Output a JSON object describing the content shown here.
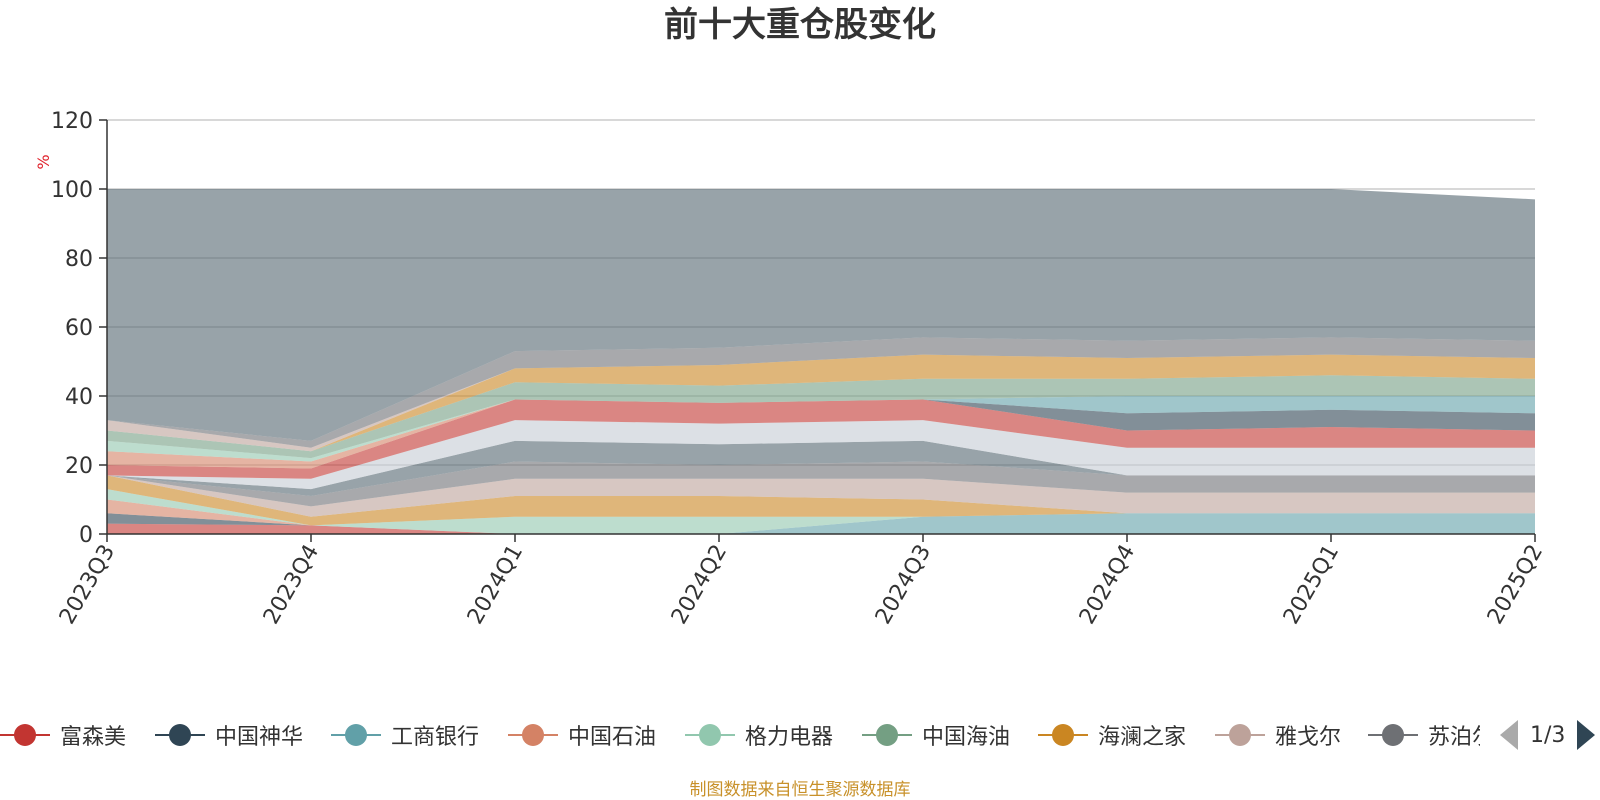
{
  "chart_data": {
    "type": "area",
    "title": "前十大重仓股变化",
    "ylabel": "%",
    "ylim": [
      0,
      120
    ],
    "yticks": [
      0,
      20,
      40,
      60,
      80,
      100,
      120
    ],
    "categories": [
      "2023Q3",
      "2023Q4",
      "2024Q1",
      "2024Q2",
      "2024Q3",
      "2024Q4",
      "2025Q1",
      "2025Q2"
    ],
    "layers": [
      {
        "color": "#c23531",
        "lower": [
          0,
          0,
          0,
          0,
          0,
          0,
          0,
          0
        ],
        "upper": [
          3,
          2.5,
          0,
          0,
          0,
          0,
          0,
          0
        ]
      },
      {
        "color": "#2f4554",
        "lower": [
          3,
          2.5,
          0,
          0,
          0,
          0,
          0,
          0
        ],
        "upper": [
          6,
          2.5,
          0,
          0,
          0,
          0,
          0,
          0
        ]
      },
      {
        "color": "#61a0a8",
        "lower": [
          6,
          2.5,
          0,
          0,
          0,
          0,
          0,
          0
        ],
        "upper": [
          6,
          2.5,
          0,
          0,
          5,
          6,
          6,
          6
        ]
      },
      {
        "color": "#d48265",
        "lower": [
          6,
          2.5,
          0,
          0,
          5,
          6,
          6,
          6
        ],
        "upper": [
          10,
          2.5,
          0,
          0,
          5,
          6,
          6,
          6
        ]
      },
      {
        "color": "#91c7ae",
        "lower": [
          10,
          2.5,
          0,
          0,
          5,
          6,
          6,
          6
        ],
        "upper": [
          13,
          2.5,
          5,
          5,
          5,
          6,
          6,
          6
        ]
      },
      {
        "color": "#749f83",
        "lower": [
          13,
          2.5,
          5,
          5,
          5,
          6,
          6,
          6
        ],
        "upper": [
          13,
          2.5,
          5,
          5,
          5,
          6,
          6,
          6
        ]
      },
      {
        "color": "#ca8622",
        "lower": [
          13,
          2.5,
          5,
          5,
          5,
          6,
          6,
          6
        ],
        "upper": [
          17,
          5,
          11,
          11,
          10,
          6,
          6,
          6
        ]
      },
      {
        "color": "#bda29a",
        "lower": [
          17,
          5,
          11,
          11,
          10,
          6,
          6,
          6
        ],
        "upper": [
          17,
          8,
          16,
          16,
          16,
          12,
          12,
          12
        ]
      },
      {
        "color": "#6e7074",
        "lower": [
          17,
          8,
          16,
          16,
          16,
          12,
          12,
          12
        ],
        "upper": [
          17,
          11,
          21,
          20,
          21,
          17,
          17,
          17
        ]
      },
      {
        "color": "#546570",
        "lower": [
          17,
          11,
          21,
          20,
          21,
          17,
          17,
          17
        ],
        "upper": [
          17,
          13,
          27,
          26,
          27,
          17,
          17,
          17
        ]
      },
      {
        "color": "#c4ccd3",
        "lower": [
          17,
          13,
          27,
          26,
          27,
          17,
          17,
          17
        ],
        "upper": [
          17,
          16,
          33,
          32,
          33,
          25,
          25,
          25
        ]
      },
      {
        "color": "#c23531",
        "lower": [
          17,
          16,
          33,
          32,
          33,
          25,
          25,
          25
        ],
        "upper": [
          20,
          19,
          39,
          38,
          39,
          30,
          31,
          30
        ]
      },
      {
        "color": "#2f4554",
        "lower": [
          20,
          19,
          39,
          38,
          39,
          30,
          31,
          30
        ],
        "upper": [
          20,
          19,
          39,
          38,
          39,
          35,
          36,
          35
        ]
      },
      {
        "color": "#61a0a8",
        "lower": [
          20,
          19,
          39,
          38,
          39,
          35,
          36,
          35
        ],
        "upper": [
          20,
          19,
          39,
          38,
          39,
          40,
          40,
          40
        ]
      },
      {
        "color": "#d48265",
        "lower": [
          20,
          19,
          39,
          38,
          39,
          40,
          40,
          40
        ],
        "upper": [
          24,
          21,
          39,
          38,
          39,
          40,
          40,
          40
        ]
      },
      {
        "color": "#91c7ae",
        "lower": [
          24,
          21,
          39,
          38,
          39,
          40,
          40,
          40
        ],
        "upper": [
          27,
          22,
          39,
          38,
          39,
          40,
          40,
          40
        ]
      },
      {
        "color": "#749f83",
        "lower": [
          27,
          22,
          39,
          38,
          39,
          40,
          40,
          40
        ],
        "upper": [
          30,
          24,
          44,
          43,
          45,
          45,
          46,
          45
        ]
      },
      {
        "color": "#ca8622",
        "lower": [
          30,
          24,
          44,
          43,
          45,
          45,
          46,
          45
        ],
        "upper": [
          30,
          24,
          48,
          49,
          52,
          51,
          52,
          51
        ]
      },
      {
        "color": "#bda29a",
        "lower": [
          30,
          24,
          48,
          49,
          52,
          51,
          52,
          51
        ],
        "upper": [
          33,
          25,
          48,
          49,
          52,
          51,
          52,
          51
        ]
      },
      {
        "color": "#6e7074",
        "lower": [
          33,
          25,
          48,
          49,
          52,
          51,
          52,
          51
        ],
        "upper": [
          33,
          27,
          53,
          54,
          57,
          56,
          57,
          56
        ]
      },
      {
        "color": "#546570",
        "lower": [
          33,
          27,
          53,
          54,
          57,
          56,
          57,
          56
        ],
        "upper": [
          100,
          100,
          100,
          100,
          100,
          100,
          100,
          97
        ]
      }
    ]
  },
  "legend": {
    "items": [
      {
        "name": "富森美",
        "color": "#c23531"
      },
      {
        "name": "中国神华",
        "color": "#2f4554"
      },
      {
        "name": "工商银行",
        "color": "#61a0a8"
      },
      {
        "name": "中国石油",
        "color": "#d48265"
      },
      {
        "name": "格力电器",
        "color": "#91c7ae"
      },
      {
        "name": "中国海油",
        "color": "#749f83"
      },
      {
        "name": "海澜之家",
        "color": "#ca8622"
      },
      {
        "name": "雅戈尔",
        "color": "#bda29a"
      },
      {
        "name": "苏泊尔",
        "color": "#6e7074"
      }
    ],
    "page_label": "1/3"
  },
  "source_note": "制图数据来自恒生聚源数据库"
}
